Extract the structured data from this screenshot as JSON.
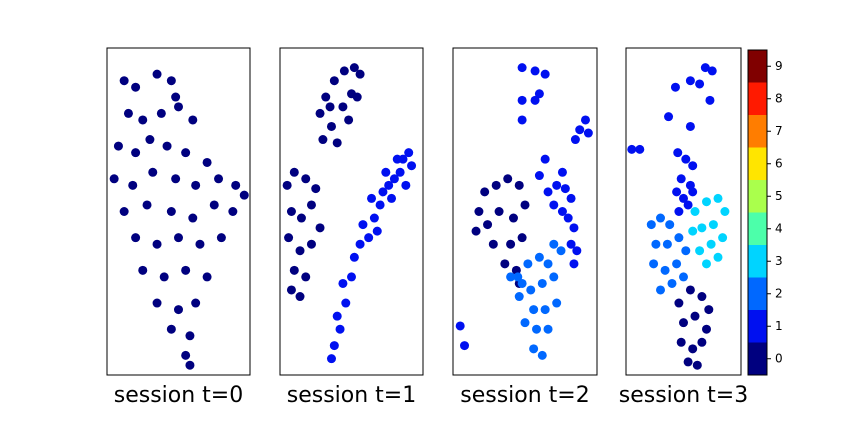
{
  "chart_data": [
    {
      "type": "scatter",
      "xlabel": "session t=0",
      "xlim": [
        0,
        100
      ],
      "ylim": [
        0,
        100
      ],
      "series": [
        {
          "color": "#00007f",
          "x": [
            12,
            20,
            35,
            45,
            48,
            15,
            25,
            38,
            50,
            60,
            30,
            8,
            20,
            42,
            55,
            70,
            5,
            18,
            32,
            48,
            62,
            78,
            90,
            96,
            12,
            28,
            45,
            60,
            75,
            88,
            20,
            35,
            50,
            65,
            80,
            25,
            40,
            55,
            70,
            35,
            50,
            62,
            45,
            58,
            55,
            58
          ],
          "values": [
            90,
            88,
            92,
            90,
            85,
            80,
            78,
            80,
            82,
            78,
            72,
            70,
            68,
            70,
            68,
            65,
            60,
            58,
            62,
            60,
            58,
            60,
            58,
            55,
            50,
            52,
            50,
            48,
            52,
            50,
            42,
            40,
            42,
            40,
            42,
            32,
            30,
            32,
            30,
            22,
            20,
            22,
            14,
            12,
            6,
            3
          ]
        }
      ]
    },
    {
      "type": "scatter",
      "xlabel": "session t=1",
      "xlim": [
        0,
        100
      ],
      "ylim": [
        0,
        100
      ],
      "series": [
        {
          "color": "#00007f",
          "x": [
            28,
            32,
            38,
            45,
            52,
            56,
            50,
            44,
            36,
            30,
            40,
            48,
            54,
            35,
            5,
            10,
            18,
            25,
            8,
            15,
            22,
            28,
            6,
            14,
            22,
            10,
            18,
            8,
            14
          ],
          "values": [
            80,
            85,
            90,
            93,
            94,
            92,
            86,
            82,
            76,
            72,
            71,
            78,
            85,
            82,
            58,
            62,
            60,
            57,
            50,
            48,
            52,
            45,
            42,
            38,
            40,
            32,
            30,
            26,
            24
          ]
        },
        {
          "color": "#0010f0",
          "x": [
            36,
            38,
            42,
            40,
            46,
            44,
            50,
            52,
            56,
            62,
            58,
            66,
            70,
            64,
            72,
            76,
            80,
            74,
            84,
            86,
            90,
            82,
            78,
            68,
            88,
            92
          ],
          "values": [
            5,
            9,
            14,
            18,
            22,
            28,
            30,
            36,
            40,
            42,
            46,
            48,
            52,
            54,
            56,
            58,
            60,
            62,
            62,
            66,
            68,
            66,
            54,
            44,
            58,
            64
          ]
        }
      ]
    },
    {
      "type": "scatter",
      "xlabel": "session t=2",
      "xlim": [
        0,
        100
      ],
      "ylim": [
        0,
        100
      ],
      "series": [
        {
          "color": "#00007f",
          "x": [
            18,
            22,
            30,
            38,
            46,
            50,
            42,
            32,
            24,
            16,
            28,
            40,
            48,
            36,
            44,
            46
          ],
          "values": [
            50,
            56,
            58,
            60,
            58,
            52,
            48,
            50,
            46,
            44,
            40,
            40,
            42,
            34,
            32,
            28
          ]
        },
        {
          "color": "#0010f0",
          "x": [
            66,
            72,
            78,
            82,
            76,
            70,
            80,
            84,
            82,
            86,
            84,
            48,
            57,
            64,
            48,
            57,
            60,
            48,
            92,
            88,
            85,
            94,
            64,
            60,
            76,
            5,
            8
          ],
          "values": [
            56,
            58,
            57,
            54,
            50,
            52,
            48,
            45,
            40,
            38,
            34,
            94,
            93,
            92,
            84,
            84,
            86,
            78,
            78,
            75,
            72,
            74,
            66,
            61,
            62,
            15,
            9
          ]
        },
        {
          "color": "#0068ff",
          "x": [
            45,
            52,
            60,
            66,
            70,
            62,
            54,
            46,
            56,
            64,
            72,
            50,
            58,
            66,
            56,
            62,
            40,
            48,
            75,
            70
          ],
          "values": [
            30,
            34,
            36,
            34,
            30,
            28,
            26,
            24,
            20,
            20,
            22,
            16,
            14,
            14,
            8,
            6,
            30,
            28,
            38,
            40
          ]
        }
      ]
    },
    {
      "type": "scatter",
      "xlabel": "session t=3",
      "xlim": [
        0,
        100
      ],
      "ylim": [
        0,
        100
      ],
      "series": [
        {
          "color": "#0010f0",
          "x": [
            69,
            75,
            56,
            43,
            64,
            73,
            37,
            56,
            5,
            12,
            45,
            52,
            58,
            48,
            56,
            44,
            50,
            58,
            46,
            54
          ],
          "values": [
            94,
            93,
            90,
            88,
            89,
            84,
            79,
            76,
            69,
            69,
            68,
            66,
            64,
            60,
            58,
            56,
            54,
            56,
            50,
            52
          ]
        },
        {
          "color": "#00d4ff",
          "x": [
            60,
            70,
            80,
            86,
            76,
            66,
            58,
            84,
            74,
            64,
            80,
            70
          ],
          "values": [
            50,
            53,
            54,
            50,
            46,
            45,
            44,
            42,
            40,
            38,
            36,
            34
          ]
        },
        {
          "color": "#0068ff",
          "x": [
            22,
            30,
            38,
            26,
            36,
            46,
            52,
            24,
            34,
            44,
            30,
            40,
            50
          ],
          "values": [
            46,
            48,
            46,
            40,
            40,
            42,
            38,
            34,
            32,
            34,
            26,
            28,
            30
          ]
        },
        {
          "color": "#00007f",
          "x": [
            46,
            56,
            66,
            72,
            50,
            60,
            70,
            48,
            58,
            66,
            54,
            62
          ],
          "values": [
            22,
            26,
            24,
            20,
            16,
            18,
            14,
            10,
            8,
            10,
            4,
            3
          ]
        }
      ]
    },
    {
      "type": "colorbar",
      "ylim": [
        -0.5,
        9.5
      ],
      "yticks": [
        0,
        1,
        2,
        3,
        4,
        5,
        6,
        7,
        8,
        9
      ],
      "values": [
        0,
        1,
        2,
        3,
        4,
        5,
        6,
        7,
        8,
        9
      ],
      "colors": [
        "#00007f",
        "#0010f0",
        "#0068ff",
        "#00d4ff",
        "#4cffaa",
        "#aaff4c",
        "#ffe500",
        "#ff7d00",
        "#ff1a00",
        "#800000"
      ]
    }
  ]
}
